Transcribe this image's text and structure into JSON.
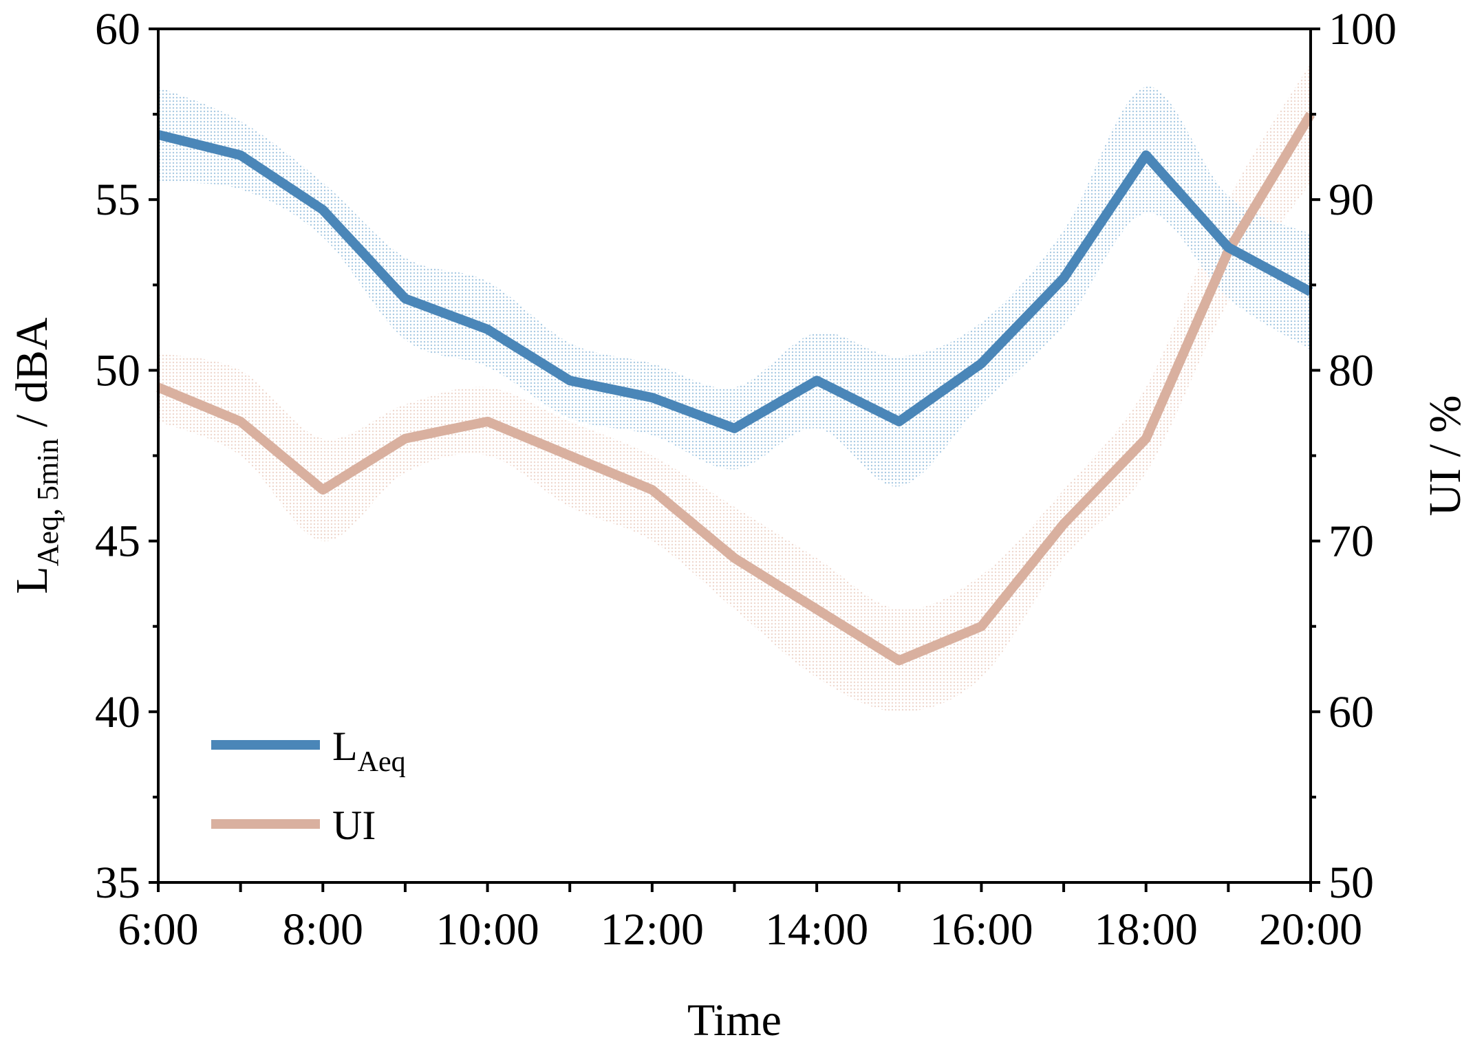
{
  "chart_data": {
    "type": "line",
    "x_label": "Time",
    "x_ticks": [
      "6:00",
      "8:00",
      "10:00",
      "12:00",
      "14:00",
      "16:00",
      "18:00",
      "20:00"
    ],
    "x_hours": [
      6,
      7,
      8,
      9,
      10,
      11,
      12,
      13,
      14,
      15,
      16,
      17,
      18,
      19,
      20
    ],
    "xlim": [
      6,
      20
    ],
    "y_left": {
      "label_main": "L",
      "label_sub": "Aeq, 5min",
      "label_rest": " / dBA",
      "lim": [
        35,
        60
      ],
      "ticks": [
        35,
        40,
        45,
        50,
        55,
        60
      ]
    },
    "y_right": {
      "label": "UI / %",
      "lim": [
        50,
        100
      ],
      "ticks": [
        50,
        60,
        70,
        80,
        90,
        100
      ]
    },
    "series": [
      {
        "name": "LAeq",
        "legend_main": "L",
        "legend_sub": "Aeq",
        "axis": "left",
        "color": "#4a86b8",
        "band_color": "#9ec3df",
        "values": [
          56.9,
          56.3,
          54.7,
          52.1,
          51.2,
          49.7,
          49.2,
          48.3,
          49.7,
          48.5,
          50.2,
          52.7,
          56.3,
          53.6,
          52.3
        ],
        "band_lower": [
          55.5,
          55.3,
          53.9,
          50.9,
          50.1,
          48.6,
          48.1,
          47.1,
          48.3,
          46.6,
          49.0,
          51.3,
          54.6,
          52.1,
          50.6
        ],
        "band_upper": [
          58.3,
          57.3,
          55.5,
          53.3,
          52.6,
          50.8,
          50.2,
          49.5,
          51.1,
          50.4,
          51.4,
          54.1,
          58.3,
          55.1,
          54.0
        ]
      },
      {
        "name": "UI",
        "legend_main": "UI",
        "legend_sub": "",
        "axis": "right",
        "color": "#d9b09f",
        "band_color": "#ecd3c8",
        "values": [
          79,
          77,
          73,
          76,
          77,
          75,
          73,
          69,
          66,
          63,
          65,
          71,
          76,
          87,
          95
        ],
        "band_lower": [
          77,
          75,
          70,
          74,
          75,
          72,
          70,
          66,
          62,
          60,
          62,
          69,
          74,
          84,
          91
        ],
        "band_upper": [
          81,
          80,
          76,
          78,
          79,
          77,
          75,
          72,
          69,
          66,
          68,
          73,
          79,
          90,
          98
        ]
      }
    ]
  }
}
